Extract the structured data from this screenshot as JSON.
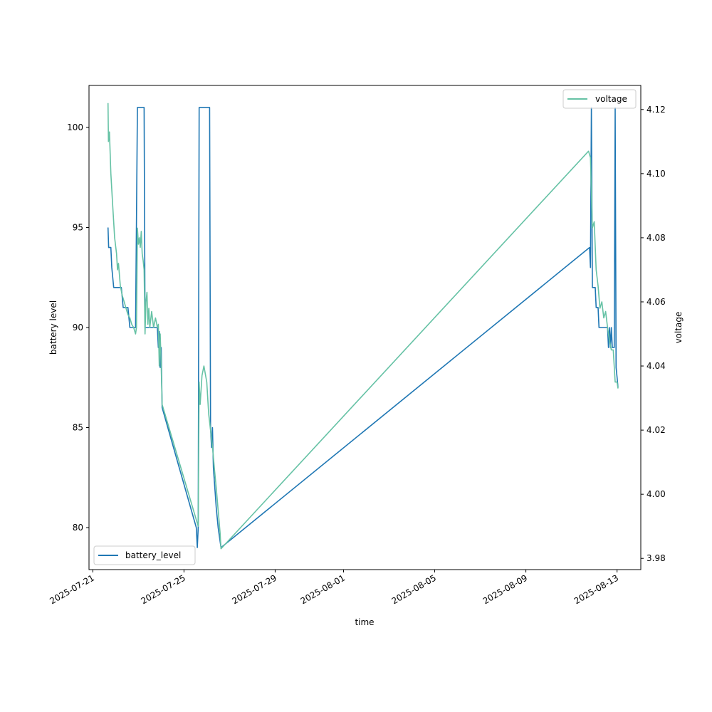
{
  "chart_data": {
    "type": "line",
    "xlabel": "time",
    "ylabel_left": "battery level",
    "ylabel_right": "voltage",
    "x_ticks": [
      "2025-07-21",
      "2025-07-25",
      "2025-07-29",
      "2025-08-01",
      "2025-08-05",
      "2025-08-09",
      "2025-08-13"
    ],
    "xlim": [
      "2025-07-20T20:00",
      "2025-08-14T01:00"
    ],
    "y_left": {
      "ticks": [
        80,
        85,
        90,
        95,
        100
      ],
      "ylim": [
        77.9,
        102.1
      ]
    },
    "y_right": {
      "ticks": [
        "3.98",
        "4.00",
        "4.02",
        "4.04",
        "4.06",
        "4.08",
        "4.10",
        "4.12"
      ],
      "ylim": [
        3.9765,
        4.1275
      ]
    },
    "series": [
      {
        "name": "battery_level",
        "axis": "left",
        "color": "#1f77b4",
        "legend_position": "lower-left",
        "points": [
          [
            "2025-07-21T16:00",
            95
          ],
          [
            "2025-07-21T16:40",
            94
          ],
          [
            "2025-07-21T19:00",
            94
          ],
          [
            "2025-07-21T20:00",
            93
          ],
          [
            "2025-07-21T22:00",
            92
          ],
          [
            "2025-07-22T06:00",
            92
          ],
          [
            "2025-07-22T08:00",
            91
          ],
          [
            "2025-07-22T13:00",
            91
          ],
          [
            "2025-07-22T15:00",
            90
          ],
          [
            "2025-07-22T21:00",
            90
          ],
          [
            "2025-07-22T23:00",
            101
          ],
          [
            "2025-07-23T06:00",
            101
          ],
          [
            "2025-07-23T07:00",
            90
          ],
          [
            "2025-07-23T20:00",
            90
          ],
          [
            "2025-07-23T21:00",
            89
          ],
          [
            "2025-07-23T22:00",
            89.8
          ],
          [
            "2025-07-23T23:00",
            88
          ],
          [
            "2025-07-24T00:00",
            89
          ],
          [
            "2025-07-24T01:00",
            86
          ],
          [
            "2025-07-25T13:00",
            80
          ],
          [
            "2025-07-25T14:00",
            79
          ],
          [
            "2025-07-25T15:00",
            80
          ],
          [
            "2025-07-25T16:00",
            101
          ],
          [
            "2025-07-26T03:00",
            101
          ],
          [
            "2025-07-26T04:00",
            85
          ],
          [
            "2025-07-26T05:00",
            84
          ],
          [
            "2025-07-26T06:00",
            85
          ],
          [
            "2025-07-26T07:00",
            83
          ],
          [
            "2025-07-26T10:00",
            81
          ],
          [
            "2025-07-26T12:00",
            80
          ],
          [
            "2025-07-26T15:00",
            79
          ],
          [
            "2025-08-11T19:00",
            94
          ],
          [
            "2025-08-11T20:00",
            93
          ],
          [
            "2025-08-11T21:00",
            101
          ],
          [
            "2025-08-11T22:00",
            92
          ],
          [
            "2025-08-12T01:00",
            92
          ],
          [
            "2025-08-12T02:00",
            91
          ],
          [
            "2025-08-12T04:00",
            91
          ],
          [
            "2025-08-12T05:00",
            90
          ],
          [
            "2025-08-12T14:00",
            90
          ],
          [
            "2025-08-12T15:00",
            89
          ],
          [
            "2025-08-12T16:00",
            90
          ],
          [
            "2025-08-12T17:00",
            89
          ],
          [
            "2025-08-12T18:00",
            90
          ],
          [
            "2025-08-12T19:00",
            89
          ],
          [
            "2025-08-12T21:00",
            89
          ],
          [
            "2025-08-12T22:00",
            101
          ],
          [
            "2025-08-12T23:00",
            88
          ],
          [
            "2025-08-13T00:00",
            87.5
          ],
          [
            "2025-08-13T01:00",
            87
          ]
        ]
      },
      {
        "name": "voltage",
        "axis": "right",
        "color": "#66c2a5",
        "legend_position": "upper-right",
        "points": [
          [
            "2025-07-21T16:00",
            4.122
          ],
          [
            "2025-07-21T16:30",
            4.11
          ],
          [
            "2025-07-21T17:30",
            4.113
          ],
          [
            "2025-07-21T19:00",
            4.1
          ],
          [
            "2025-07-21T21:00",
            4.09
          ],
          [
            "2025-07-21T23:00",
            4.08
          ],
          [
            "2025-07-22T01:00",
            4.075
          ],
          [
            "2025-07-22T02:00",
            4.07
          ],
          [
            "2025-07-22T03:00",
            4.072
          ],
          [
            "2025-07-22T05:00",
            4.065
          ],
          [
            "2025-07-22T07:00",
            4.062
          ],
          [
            "2025-07-22T09:00",
            4.06
          ],
          [
            "2025-07-22T11:00",
            4.058
          ],
          [
            "2025-07-22T13:00",
            4.056
          ],
          [
            "2025-07-22T15:00",
            4.055
          ],
          [
            "2025-07-22T17:00",
            4.053
          ],
          [
            "2025-07-22T19:00",
            4.052
          ],
          [
            "2025-07-22T21:00",
            4.05
          ],
          [
            "2025-07-22T22:00",
            4.052
          ],
          [
            "2025-07-22T23:00",
            4.083
          ],
          [
            "2025-07-23T00:00",
            4.078
          ],
          [
            "2025-07-23T01:00",
            4.08
          ],
          [
            "2025-07-23T02:00",
            4.077
          ],
          [
            "2025-07-23T03:00",
            4.082
          ],
          [
            "2025-07-23T04:00",
            4.075
          ],
          [
            "2025-07-23T05:00",
            4.073
          ],
          [
            "2025-07-23T06:00",
            4.07
          ],
          [
            "2025-07-23T07:00",
            4.05
          ],
          [
            "2025-07-23T08:00",
            4.06
          ],
          [
            "2025-07-23T09:00",
            4.063
          ],
          [
            "2025-07-23T10:00",
            4.053
          ],
          [
            "2025-07-23T11:00",
            4.058
          ],
          [
            "2025-07-23T12:00",
            4.052
          ],
          [
            "2025-07-23T14:00",
            4.057
          ],
          [
            "2025-07-23T16:00",
            4.052
          ],
          [
            "2025-07-23T18:00",
            4.055
          ],
          [
            "2025-07-23T20:00",
            4.052
          ],
          [
            "2025-07-23T21:00",
            4.053
          ],
          [
            "2025-07-23T22:00",
            4.04
          ],
          [
            "2025-07-23T23:00",
            4.05
          ],
          [
            "2025-07-24T00:00",
            4.04
          ],
          [
            "2025-07-24T01:00",
            4.028
          ],
          [
            "2025-07-24T04:00",
            4.025
          ],
          [
            "2025-07-25T15:00",
            3.99
          ],
          [
            "2025-07-25T16:00",
            4.035
          ],
          [
            "2025-07-25T17:00",
            4.028
          ],
          [
            "2025-07-25T19:00",
            4.037
          ],
          [
            "2025-07-25T21:00",
            4.04
          ],
          [
            "2025-07-26T00:00",
            4.035
          ],
          [
            "2025-07-26T02:00",
            4.025
          ],
          [
            "2025-07-26T04:00",
            4.02
          ],
          [
            "2025-07-26T06:00",
            4.015
          ],
          [
            "2025-07-26T08:00",
            4.008
          ],
          [
            "2025-07-26T10:00",
            4.002
          ],
          [
            "2025-07-26T12:00",
            3.995
          ],
          [
            "2025-07-26T14:00",
            3.988
          ],
          [
            "2025-07-26T15:00",
            3.983
          ],
          [
            "2025-08-11T18:00",
            4.107
          ],
          [
            "2025-08-11T20:00",
            4.105
          ],
          [
            "2025-08-11T22:00",
            4.083
          ],
          [
            "2025-08-12T00:00",
            4.085
          ],
          [
            "2025-08-12T02:00",
            4.07
          ],
          [
            "2025-08-12T04:00",
            4.065
          ],
          [
            "2025-08-12T06:00",
            4.058
          ],
          [
            "2025-08-12T08:00",
            4.06
          ],
          [
            "2025-08-12T10:00",
            4.055
          ],
          [
            "2025-08-12T12:00",
            4.057
          ],
          [
            "2025-08-12T14:00",
            4.052
          ],
          [
            "2025-08-12T16:00",
            4.048
          ],
          [
            "2025-08-12T18:00",
            4.045
          ],
          [
            "2025-08-12T20:00",
            4.045
          ],
          [
            "2025-08-12T22:00",
            4.035
          ],
          [
            "2025-08-13T00:00",
            4.035
          ],
          [
            "2025-08-13T01:00",
            4.033
          ]
        ]
      }
    ]
  }
}
